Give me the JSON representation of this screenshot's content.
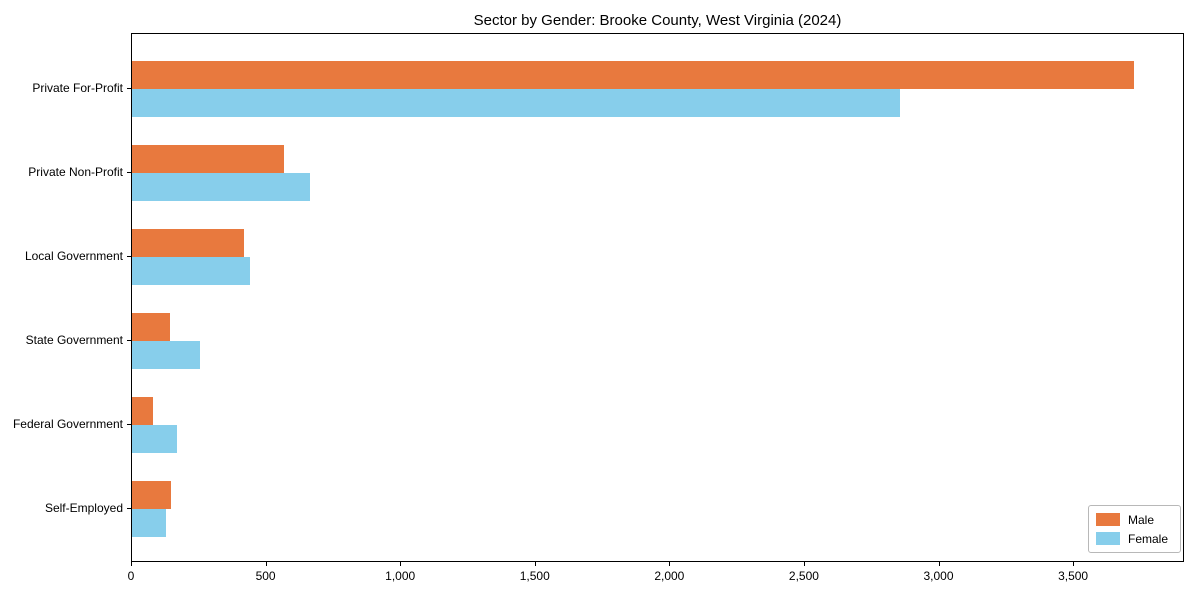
{
  "chart_data": {
    "type": "bar",
    "orientation": "horizontal",
    "title": "Sector by Gender: Brooke County, West Virginia (2024)",
    "categories": [
      "Private For-Profit",
      "Private Non-Profit",
      "Local Government",
      "State Government",
      "Federal Government",
      "Self-Employed"
    ],
    "series": [
      {
        "name": "Male",
        "color": "#e8793e",
        "values": [
          3730,
          565,
          416,
          141,
          78,
          145
        ]
      },
      {
        "name": "Female",
        "color": "#87ceeb",
        "values": [
          2857,
          661,
          438,
          253,
          167,
          126
        ]
      }
    ],
    "xlabel": "",
    "ylabel": "",
    "xlim": [
      0,
      3912
    ],
    "xticks": [
      0,
      500,
      1000,
      1500,
      2000,
      2500,
      3000,
      3500
    ],
    "xtick_labels": [
      "0",
      "500",
      "1,000",
      "1,500",
      "2,000",
      "2,500",
      "3,000",
      "3,500"
    ],
    "grid": false,
    "legend": {
      "position": "lower right",
      "entries": [
        "Male",
        "Female"
      ]
    },
    "colors": {
      "male": "#e8793e",
      "female": "#87ceeb",
      "spine": "#000000",
      "legend_border": "#b8b8b8"
    }
  }
}
